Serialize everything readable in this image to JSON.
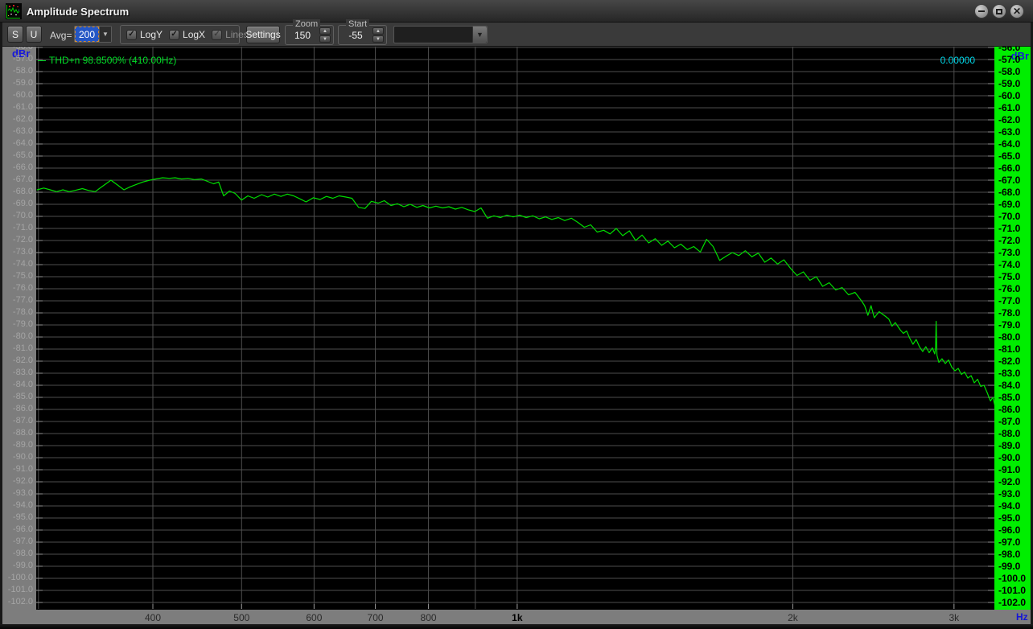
{
  "window": {
    "title": "Amplitude Spectrum"
  },
  "icons": {
    "combo_arrow": "▼",
    "spin_up": "▲",
    "spin_down": "▼",
    "check": "✓",
    "close": "✕"
  },
  "toolbar": {
    "s_button": "S",
    "u_button": "U",
    "avg_label": "Avg=",
    "avg_value": "200",
    "log_group": {
      "items": [
        {
          "label": "LogY",
          "checked": true,
          "enabled": true
        },
        {
          "label": "LogX",
          "checked": true,
          "enabled": true
        },
        {
          "label": "Lines",
          "checked": true,
          "enabled": false
        }
      ]
    },
    "settings_button": "Settings",
    "zoom_group": {
      "label": "Zoom",
      "value": "150"
    },
    "start_group": {
      "label": "Start",
      "value": "-55"
    },
    "preset_combo_value": ""
  },
  "plot": {
    "thd_readout": "THD+n 98.8500% (410.00Hz)",
    "cursor_readout": "0.00000",
    "y_axis": {
      "unit": "dBr",
      "tick_labels": [
        "-56.0",
        "-57.0",
        "-58.0",
        "-59.0",
        "-60.0",
        "-61.0",
        "-62.0",
        "-63.0",
        "-64.0",
        "-65.0",
        "-66.0",
        "-67.0",
        "-68.0",
        "-69.0",
        "-70.0",
        "-71.0",
        "-72.0",
        "-73.0",
        "-74.0",
        "-75.0",
        "-76.0",
        "-77.0",
        "-78.0",
        "-79.0",
        "-80.0",
        "-81.0",
        "-82.0",
        "-83.0",
        "-84.0",
        "-85.0",
        "-86.0",
        "-87.0",
        "-88.0",
        "-89.0",
        "-90.0",
        "-91.0",
        "-92.0",
        "-93.0",
        "-94.0",
        "-95.0",
        "-96.0",
        "-97.0",
        "-98.0",
        "-99.0",
        "-100.0",
        "-101.0",
        "-102.0"
      ]
    },
    "x_axis": {
      "unit": "Hz",
      "labels": [
        {
          "f": 400,
          "t": "400"
        },
        {
          "f": 500,
          "t": "500"
        },
        {
          "f": 600,
          "t": "600"
        },
        {
          "f": 700,
          "t": "700"
        },
        {
          "f": 800,
          "t": "800"
        },
        {
          "f": 1000,
          "t": "1k",
          "bold": true
        },
        {
          "f": 2000,
          "t": "2k"
        },
        {
          "f": 3000,
          "t": "3k"
        }
      ],
      "grid_freqs": [
        300,
        400,
        500,
        600,
        700,
        800,
        900,
        1000,
        2000,
        3000
      ]
    },
    "colors": {
      "plot_bg": "#000000",
      "grid": "#4e4e4e",
      "tick": "#929292",
      "axis_strip": "#7d7d7d",
      "right_strip": "#00ee00",
      "trace": "#00dd00",
      "thd_text": "#00de26",
      "cursor_text": "#00d8ea",
      "dbr_text": "#1515dd"
    }
  },
  "chart_data": {
    "type": "line",
    "title": "Amplitude Spectrum",
    "xlabel": "Hz",
    "ylabel": "dBr",
    "x_scale": "log",
    "xlim": [
      299,
      3328
    ],
    "ylim": [
      -102.5,
      -56.0
    ],
    "grid": true,
    "annotations": [
      "THD+n 98.8500% (410.00Hz)",
      "0.00000"
    ],
    "series": [
      {
        "name": "spectrum-trace",
        "color": "#00dd00",
        "points": [
          [
            299,
            -67.8
          ],
          [
            304,
            -67.65
          ],
          [
            309,
            -67.8
          ],
          [
            314,
            -67.95
          ],
          [
            319,
            -67.8
          ],
          [
            324,
            -67.95
          ],
          [
            329,
            -67.85
          ],
          [
            335,
            -67.7
          ],
          [
            340,
            -67.85
          ],
          [
            346,
            -67.95
          ],
          [
            351,
            -67.6
          ],
          [
            357,
            -67.2
          ],
          [
            360,
            -67.0
          ],
          [
            366,
            -67.4
          ],
          [
            372,
            -67.8
          ],
          [
            378,
            -67.55
          ],
          [
            384,
            -67.35
          ],
          [
            390,
            -67.15
          ],
          [
            397,
            -67.0
          ],
          [
            403,
            -66.9
          ],
          [
            410,
            -66.8
          ],
          [
            417,
            -66.85
          ],
          [
            423,
            -66.8
          ],
          [
            430,
            -66.9
          ],
          [
            437,
            -66.85
          ],
          [
            444,
            -66.95
          ],
          [
            452,
            -66.9
          ],
          [
            459,
            -67.1
          ],
          [
            466,
            -67.3
          ],
          [
            472,
            -67.15
          ],
          [
            478,
            -68.3
          ],
          [
            485,
            -67.9
          ],
          [
            492,
            -68.1
          ],
          [
            500,
            -68.65
          ],
          [
            508,
            -68.3
          ],
          [
            516,
            -68.5
          ],
          [
            526,
            -68.2
          ],
          [
            534,
            -68.4
          ],
          [
            543,
            -68.15
          ],
          [
            552,
            -68.35
          ],
          [
            561,
            -68.15
          ],
          [
            570,
            -68.3
          ],
          [
            579,
            -68.55
          ],
          [
            588,
            -68.8
          ],
          [
            599,
            -68.45
          ],
          [
            609,
            -68.6
          ],
          [
            619,
            -68.35
          ],
          [
            629,
            -68.5
          ],
          [
            639,
            -68.3
          ],
          [
            650,
            -68.4
          ],
          [
            660,
            -68.5
          ],
          [
            671,
            -69.25
          ],
          [
            682,
            -69.35
          ],
          [
            693,
            -68.75
          ],
          [
            705,
            -68.9
          ],
          [
            716,
            -68.7
          ],
          [
            728,
            -69.1
          ],
          [
            740,
            -68.95
          ],
          [
            752,
            -69.2
          ],
          [
            764,
            -69.0
          ],
          [
            777,
            -69.25
          ],
          [
            789,
            -69.1
          ],
          [
            802,
            -69.3
          ],
          [
            815,
            -69.15
          ],
          [
            829,
            -69.3
          ],
          [
            842,
            -69.2
          ],
          [
            856,
            -69.4
          ],
          [
            870,
            -69.25
          ],
          [
            884,
            -69.45
          ],
          [
            899,
            -69.6
          ],
          [
            913,
            -69.3
          ],
          [
            928,
            -70.15
          ],
          [
            943,
            -69.95
          ],
          [
            959,
            -70.1
          ],
          [
            974,
            -69.9
          ],
          [
            990,
            -70.05
          ],
          [
            1006,
            -69.9
          ],
          [
            1023,
            -70.1
          ],
          [
            1040,
            -69.95
          ],
          [
            1057,
            -70.2
          ],
          [
            1074,
            -70.05
          ],
          [
            1091,
            -70.25
          ],
          [
            1109,
            -70.1
          ],
          [
            1127,
            -70.35
          ],
          [
            1146,
            -70.15
          ],
          [
            1165,
            -70.5
          ],
          [
            1184,
            -70.9
          ],
          [
            1203,
            -70.7
          ],
          [
            1223,
            -71.3
          ],
          [
            1243,
            -71.15
          ],
          [
            1263,
            -71.45
          ],
          [
            1283,
            -71.0
          ],
          [
            1304,
            -71.6
          ],
          [
            1326,
            -71.2
          ],
          [
            1347,
            -72.0
          ],
          [
            1369,
            -71.55
          ],
          [
            1392,
            -72.2
          ],
          [
            1415,
            -71.85
          ],
          [
            1438,
            -72.4
          ],
          [
            1461,
            -72.05
          ],
          [
            1485,
            -72.6
          ],
          [
            1509,
            -72.3
          ],
          [
            1534,
            -72.75
          ],
          [
            1559,
            -72.5
          ],
          [
            1585,
            -72.95
          ],
          [
            1610,
            -71.9
          ],
          [
            1637,
            -72.5
          ],
          [
            1664,
            -73.65
          ],
          [
            1691,
            -73.3
          ],
          [
            1718,
            -73.0
          ],
          [
            1746,
            -73.25
          ],
          [
            1775,
            -72.85
          ],
          [
            1804,
            -73.35
          ],
          [
            1834,
            -73.05
          ],
          [
            1864,
            -73.8
          ],
          [
            1894,
            -73.45
          ],
          [
            1925,
            -73.95
          ],
          [
            1956,
            -73.6
          ],
          [
            1988,
            -74.3
          ],
          [
            2021,
            -74.9
          ],
          [
            2054,
            -74.6
          ],
          [
            2088,
            -75.3
          ],
          [
            2122,
            -75.0
          ],
          [
            2156,
            -75.8
          ],
          [
            2192,
            -75.5
          ],
          [
            2228,
            -76.1
          ],
          [
            2264,
            -75.9
          ],
          [
            2301,
            -76.5
          ],
          [
            2339,
            -76.3
          ],
          [
            2377,
            -77.0
          ],
          [
            2396,
            -77.4
          ],
          [
            2416,
            -78.2
          ],
          [
            2435,
            -77.4
          ],
          [
            2455,
            -78.4
          ],
          [
            2485,
            -77.9
          ],
          [
            2516,
            -78.2
          ],
          [
            2546,
            -78.5
          ],
          [
            2567,
            -79.1
          ],
          [
            2588,
            -78.8
          ],
          [
            2620,
            -79.4
          ],
          [
            2641,
            -79.7
          ],
          [
            2663,
            -79.5
          ],
          [
            2684,
            -80.1
          ],
          [
            2706,
            -80.6
          ],
          [
            2728,
            -80.2
          ],
          [
            2750,
            -80.8
          ],
          [
            2773,
            -81.2
          ],
          [
            2795,
            -80.8
          ],
          [
            2818,
            -81.3
          ],
          [
            2841,
            -80.9
          ],
          [
            2858,
            -81.4
          ],
          [
            2864,
            -80.9
          ],
          [
            2868,
            -78.7
          ],
          [
            2874,
            -81.5
          ],
          [
            2888,
            -82.1
          ],
          [
            2911,
            -81.8
          ],
          [
            2935,
            -82.2
          ],
          [
            2959,
            -81.9
          ],
          [
            2983,
            -82.5
          ],
          [
            3007,
            -82.8
          ],
          [
            3032,
            -82.6
          ],
          [
            3056,
            -83.1
          ],
          [
            3081,
            -82.9
          ],
          [
            3106,
            -83.4
          ],
          [
            3132,
            -83.2
          ],
          [
            3157,
            -83.8
          ],
          [
            3183,
            -83.5
          ],
          [
            3209,
            -84.1
          ],
          [
            3235,
            -84.0
          ],
          [
            3261,
            -84.6
          ],
          [
            3288,
            -85.3
          ],
          [
            3308,
            -85.0
          ],
          [
            3328,
            -85.8
          ]
        ]
      }
    ]
  }
}
